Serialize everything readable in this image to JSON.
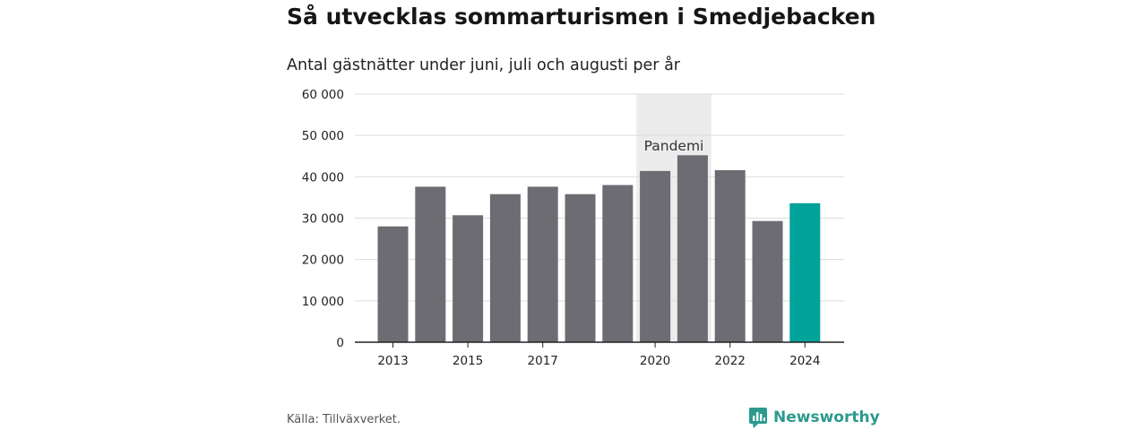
{
  "title": "Så utvecklas sommarturismen i Smedjebacken",
  "subtitle": "Antal gästnätter under juni, juli och augusti per år",
  "source": "Källa: Tillväxverket.",
  "brand": {
    "name": "Newsworthy",
    "icon": "newsworthy-logo-icon",
    "color": "#2b9a8e"
  },
  "chart_data": {
    "type": "bar",
    "categories": [
      "2013",
      "2014",
      "2015",
      "2016",
      "2017",
      "2018",
      "2019",
      "2020",
      "2021",
      "2022",
      "2023",
      "2024"
    ],
    "values": [
      28000,
      37600,
      30700,
      35800,
      37600,
      35800,
      38000,
      41400,
      45200,
      41600,
      29300,
      33600
    ],
    "bar_colors": [
      "#6d6c73",
      "#6d6c73",
      "#6d6c73",
      "#6d6c73",
      "#6d6c73",
      "#6d6c73",
      "#6d6c73",
      "#6d6c73",
      "#6d6c73",
      "#6d6c73",
      "#6d6c73",
      "#00a39a"
    ],
    "x_tick_labels": [
      "2013",
      "",
      "2015",
      "",
      "2017",
      "",
      "",
      "2020",
      "",
      "2022",
      "",
      "2024"
    ],
    "y_ticks": [
      0,
      10000,
      20000,
      30000,
      40000,
      50000,
      60000
    ],
    "y_tick_labels": [
      "0",
      "10 000",
      "20 000",
      "30 000",
      "40 000",
      "50 000",
      "60 000"
    ],
    "ylim": [
      0,
      60000
    ],
    "grid": true,
    "xlabel": "",
    "ylabel": "",
    "annotation": {
      "label": "Pandemi",
      "from": "2020",
      "to": "2021",
      "color": "#ececec"
    }
  }
}
